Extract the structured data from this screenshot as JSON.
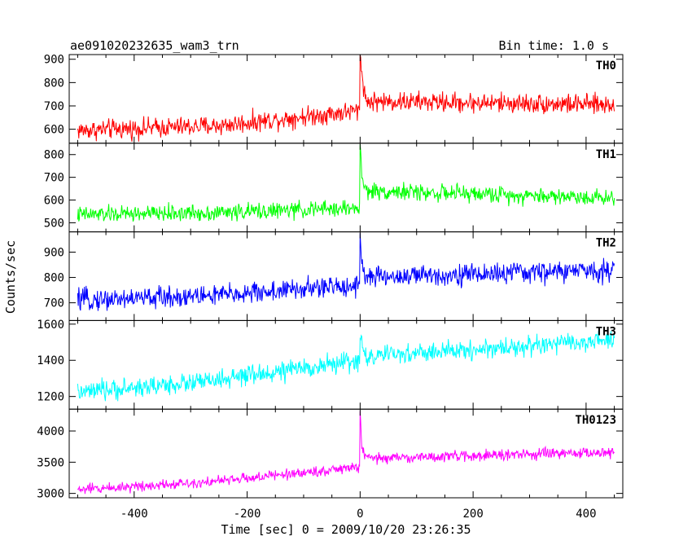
{
  "header": {
    "title": "ae091020232635_wam3_trn",
    "bin_time": "Bin time: 1.0 s"
  },
  "chart_data": {
    "type": "line",
    "xlabel": "Time [sec] 0 = 2009/10/20 23:26:35",
    "ylabel": "Counts/sec",
    "xlim": [
      -515,
      465
    ],
    "x_range": [
      -500,
      450
    ],
    "x_step": 1,
    "x_ticks": [
      -400,
      -200,
      0,
      200,
      400
    ],
    "grid": false,
    "panels": [
      {
        "name": "TH0",
        "color": "#ff0000",
        "ylim": [
          540,
          920
        ],
        "y_ticks": [
          600,
          700,
          800,
          900
        ],
        "trend": [
          [
            -500,
            595
          ],
          [
            -250,
            615
          ],
          [
            -1,
            680
          ],
          [
            0,
            920
          ],
          [
            3,
            850
          ],
          [
            10,
            720
          ],
          [
            450,
            705
          ]
        ],
        "noise": 35
      },
      {
        "name": "TH1",
        "color": "#00ff00",
        "ylim": [
          460,
          850
        ],
        "y_ticks": [
          500,
          600,
          700,
          800
        ],
        "trend": [
          [
            -500,
            535
          ],
          [
            -250,
            545
          ],
          [
            -1,
            565
          ],
          [
            0,
            845
          ],
          [
            3,
            700
          ],
          [
            10,
            640
          ],
          [
            450,
            610
          ]
        ],
        "noise": 30
      },
      {
        "name": "TH2",
        "color": "#0000ff",
        "ylim": [
          630,
          980
        ],
        "y_ticks": [
          700,
          800,
          900
        ],
        "trend": [
          [
            -500,
            710
          ],
          [
            -250,
            730
          ],
          [
            -1,
            770
          ],
          [
            0,
            975
          ],
          [
            3,
            860
          ],
          [
            10,
            800
          ],
          [
            450,
            830
          ]
        ],
        "noise": 35
      },
      {
        "name": "TH3",
        "color": "#00ffff",
        "ylim": [
          1130,
          1620
        ],
        "y_ticks": [
          1200,
          1400,
          1600
        ],
        "trend": [
          [
            -500,
            1220
          ],
          [
            -250,
            1290
          ],
          [
            -1,
            1400
          ],
          [
            0,
            1520
          ],
          [
            10,
            1420
          ],
          [
            450,
            1510
          ]
        ],
        "noise": 45
      },
      {
        "name": "TH0123",
        "color": "#ff00ff",
        "ylim": [
          2930,
          4350
        ],
        "y_ticks": [
          3000,
          3500,
          4000
        ],
        "trend": [
          [
            -500,
            3060
          ],
          [
            -250,
            3200
          ],
          [
            -1,
            3420
          ],
          [
            0,
            4320
          ],
          [
            3,
            3750
          ],
          [
            10,
            3560
          ],
          [
            450,
            3660
          ]
        ],
        "noise": 70
      }
    ]
  }
}
